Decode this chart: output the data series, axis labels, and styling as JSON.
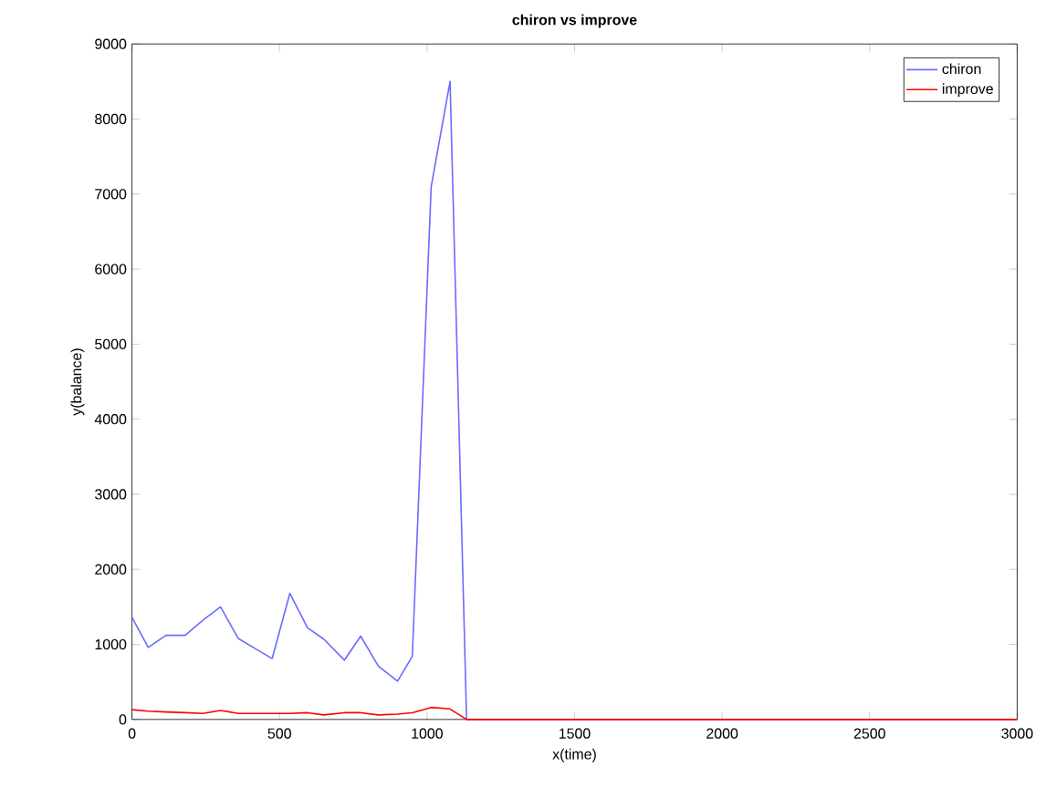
{
  "chart_data": {
    "type": "line",
    "title": "chiron vs improve",
    "xlabel": "x(time)",
    "ylabel": "y(balance)",
    "x": [
      0,
      55,
      115,
      180,
      240,
      300,
      360,
      415,
      475,
      535,
      595,
      650,
      720,
      775,
      835,
      900,
      950,
      1014,
      1078,
      1134,
      3000
    ],
    "series": [
      {
        "name": "chiron",
        "color": "#6a6aff",
        "values": [
          1360,
          960,
          1120,
          1120,
          1320,
          1500,
          1080,
          950,
          810,
          1680,
          1220,
          1070,
          790,
          1110,
          710,
          510,
          840,
          7100,
          8500,
          0,
          0
        ]
      },
      {
        "name": "improve",
        "color": "#ff0000",
        "values": [
          130,
          110,
          100,
          90,
          80,
          120,
          80,
          80,
          80,
          80,
          90,
          60,
          90,
          90,
          60,
          70,
          90,
          160,
          140,
          0,
          0
        ]
      }
    ],
    "xlim": [
      0,
      3000
    ],
    "ylim": [
      0,
      9000
    ],
    "xticks": [
      0,
      500,
      1000,
      1500,
      2000,
      2500,
      3000
    ],
    "yticks": [
      0,
      1000,
      2000,
      3000,
      4000,
      5000,
      6000,
      7000,
      8000,
      9000
    ],
    "legend": "top right",
    "grid": false
  }
}
